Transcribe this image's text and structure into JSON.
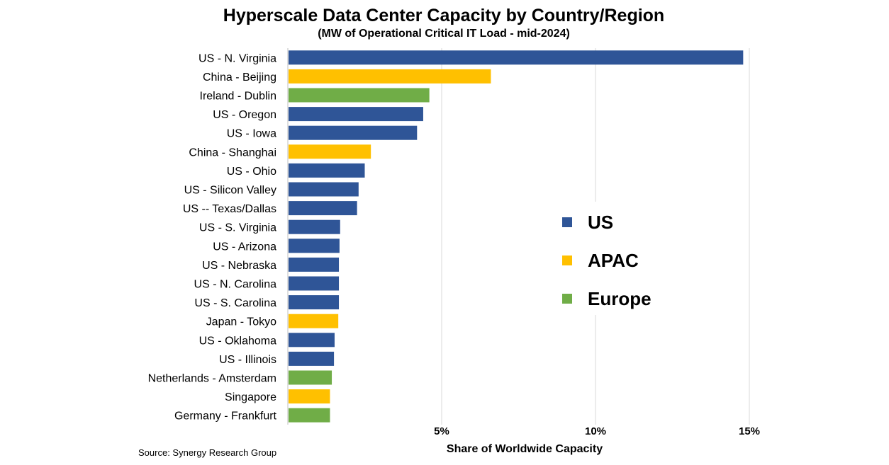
{
  "chart_data": {
    "type": "bar",
    "orientation": "horizontal",
    "title": "Hyperscale Data Center Capacity by Country/Region",
    "subtitle": "(MW of Operational Critical IT Load - mid-2024)",
    "xlabel": "Share of Worldwide Capacity",
    "ylabel": "",
    "source": "Source: Synergy Research Group",
    "xlim": [
      0,
      15
    ],
    "xticks": [
      {
        "value": 5,
        "label": "5%"
      },
      {
        "value": 10,
        "label": "10%"
      },
      {
        "value": 15,
        "label": "15%"
      }
    ],
    "grid": "vertical",
    "legend_placement": "center-right",
    "legend": [
      {
        "name": "US",
        "color": "#2F5597"
      },
      {
        "name": "APAC",
        "color": "#FFC000"
      },
      {
        "name": "Europe",
        "color": "#70AD47"
      }
    ],
    "categories": [
      "US - N. Virginia",
      "China - Beijing",
      "Ireland - Dublin",
      "US - Oregon",
      "US - Iowa",
      "China - Shanghai",
      "US - Ohio",
      "US - Silicon Valley",
      "US -- Texas/Dallas",
      "US - S. Virginia",
      "US - Arizona",
      "US - Nebraska",
      "US - N. Carolina",
      "US - S. Carolina",
      "Japan - Tokyo",
      "US - Oklahoma",
      "US - Illinois",
      "Netherlands - Amsterdam",
      "Singapore",
      "Germany - Frankfurt"
    ],
    "values": [
      14.8,
      6.6,
      4.6,
      4.4,
      4.2,
      2.7,
      2.5,
      2.3,
      2.25,
      1.7,
      1.68,
      1.66,
      1.66,
      1.66,
      1.64,
      1.52,
      1.5,
      1.43,
      1.37,
      1.37
    ],
    "groups": [
      "US",
      "APAC",
      "Europe",
      "US",
      "US",
      "APAC",
      "US",
      "US",
      "US",
      "US",
      "US",
      "US",
      "US",
      "US",
      "APAC",
      "US",
      "US",
      "Europe",
      "APAC",
      "Europe"
    ]
  }
}
